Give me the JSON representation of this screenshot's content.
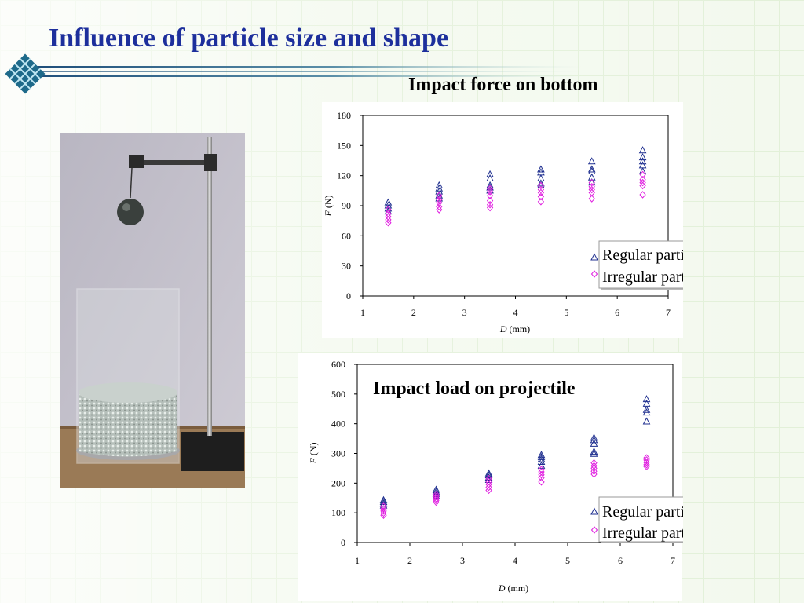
{
  "slide": {
    "title": "Influence of particle size and shape"
  },
  "colors": {
    "title": "#1d2f9c",
    "regular": "#1f2f8f",
    "irregular": "#e020e0"
  },
  "chart_data": [
    {
      "type": "scatter",
      "title": "Impact force on bottom",
      "xlabel_italic": "D",
      "xlabel_unit": "(mm)",
      "ylabel_italic": "F",
      "ylabel_unit": "(N)",
      "xlim": [
        1,
        7
      ],
      "ylim": [
        0,
        180
      ],
      "xticks": [
        1,
        2,
        3,
        4,
        5,
        6,
        7
      ],
      "yticks": [
        0,
        30,
        60,
        90,
        120,
        150,
        180
      ],
      "legend_position": "bottom-right",
      "series": [
        {
          "name": "Regular particle",
          "marker": "triangle",
          "points": [
            [
              1.5,
              93
            ],
            [
              1.5,
              90
            ],
            [
              1.5,
              87
            ],
            [
              1.5,
              84
            ],
            [
              2.5,
              110
            ],
            [
              2.5,
              107
            ],
            [
              2.5,
              104
            ],
            [
              2.5,
              100
            ],
            [
              2.5,
              97
            ],
            [
              3.5,
              121
            ],
            [
              3.5,
              117
            ],
            [
              3.5,
              110
            ],
            [
              3.5,
              108
            ],
            [
              3.5,
              105
            ],
            [
              4.5,
              126
            ],
            [
              4.5,
              123
            ],
            [
              4.5,
              117
            ],
            [
              4.5,
              112
            ],
            [
              4.5,
              110
            ],
            [
              5.5,
              134
            ],
            [
              5.5,
              126
            ],
            [
              5.5,
              124
            ],
            [
              5.5,
              118
            ],
            [
              5.5,
              113
            ],
            [
              6.5,
              145
            ],
            [
              6.5,
              138
            ],
            [
              6.5,
              134
            ],
            [
              6.5,
              130
            ],
            [
              6.5,
              124
            ]
          ]
        },
        {
          "name": "Irregular particle",
          "marker": "diamond",
          "points": [
            [
              1.5,
              86
            ],
            [
              1.5,
              82
            ],
            [
              1.5,
              79
            ],
            [
              1.5,
              76
            ],
            [
              1.5,
              73
            ],
            [
              2.5,
              100
            ],
            [
              2.5,
              96
            ],
            [
              2.5,
              93
            ],
            [
              2.5,
              89
            ],
            [
              2.5,
              86
            ],
            [
              3.5,
              107
            ],
            [
              3.5,
              104
            ],
            [
              3.5,
              100
            ],
            [
              3.5,
              95
            ],
            [
              3.5,
              91
            ],
            [
              3.5,
              88
            ],
            [
              4.5,
              110
            ],
            [
              4.5,
              106
            ],
            [
              4.5,
              103
            ],
            [
              4.5,
              99
            ],
            [
              4.5,
              94
            ],
            [
              5.5,
              113
            ],
            [
              5.5,
              109
            ],
            [
              5.5,
              106
            ],
            [
              5.5,
              103
            ],
            [
              5.5,
              97
            ],
            [
              6.5,
              121
            ],
            [
              6.5,
              116
            ],
            [
              6.5,
              113
            ],
            [
              6.5,
              110
            ],
            [
              6.5,
              101
            ]
          ]
        }
      ]
    },
    {
      "type": "scatter",
      "title": "Impact load on projectile",
      "xlabel_italic": "D",
      "xlabel_unit": "(mm)",
      "ylabel_italic": "F",
      "ylabel_unit": "(N)",
      "xlim": [
        1,
        7
      ],
      "ylim": [
        0,
        600
      ],
      "xticks": [
        1,
        2,
        3,
        4,
        5,
        6,
        7
      ],
      "yticks": [
        0,
        100,
        200,
        300,
        400,
        500,
        600
      ],
      "legend_position": "bottom-right",
      "series": [
        {
          "name": "Regular particle",
          "marker": "triangle",
          "points": [
            [
              1.5,
              142
            ],
            [
              1.5,
              136
            ],
            [
              1.5,
              130
            ],
            [
              1.5,
              124
            ],
            [
              2.5,
              177
            ],
            [
              2.5,
              170
            ],
            [
              2.5,
              163
            ],
            [
              2.5,
              156
            ],
            [
              3.5,
              232
            ],
            [
              3.5,
              226
            ],
            [
              3.5,
              218
            ],
            [
              3.5,
              210
            ],
            [
              4.5,
              294
            ],
            [
              4.5,
              287
            ],
            [
              4.5,
              280
            ],
            [
              4.5,
              271
            ],
            [
              4.5,
              258
            ],
            [
              5.5,
              352
            ],
            [
              5.5,
              344
            ],
            [
              5.5,
              332
            ],
            [
              5.5,
              305
            ],
            [
              5.5,
              298
            ],
            [
              6.5,
              482
            ],
            [
              6.5,
              467
            ],
            [
              6.5,
              446
            ],
            [
              6.5,
              437
            ],
            [
              6.5,
              407
            ]
          ]
        },
        {
          "name": "Irregular particle",
          "marker": "diamond",
          "points": [
            [
              1.5,
              122
            ],
            [
              1.5,
              114
            ],
            [
              1.5,
              106
            ],
            [
              1.5,
              99
            ],
            [
              1.5,
              92
            ],
            [
              2.5,
              162
            ],
            [
              2.5,
              155
            ],
            [
              2.5,
              148
            ],
            [
              2.5,
              142
            ],
            [
              2.5,
              136
            ],
            [
              3.5,
              215
            ],
            [
              3.5,
              205
            ],
            [
              3.5,
              196
            ],
            [
              3.5,
              186
            ],
            [
              3.5,
              176
            ],
            [
              4.5,
              246
            ],
            [
              4.5,
              238
            ],
            [
              4.5,
              228
            ],
            [
              4.5,
              218
            ],
            [
              4.5,
              204
            ],
            [
              5.5,
              268
            ],
            [
              5.5,
              258
            ],
            [
              5.5,
              250
            ],
            [
              5.5,
              240
            ],
            [
              5.5,
              230
            ],
            [
              6.5,
              285
            ],
            [
              6.5,
              278
            ],
            [
              6.5,
              270
            ],
            [
              6.5,
              262
            ],
            [
              6.5,
              256
            ]
          ]
        }
      ]
    }
  ]
}
